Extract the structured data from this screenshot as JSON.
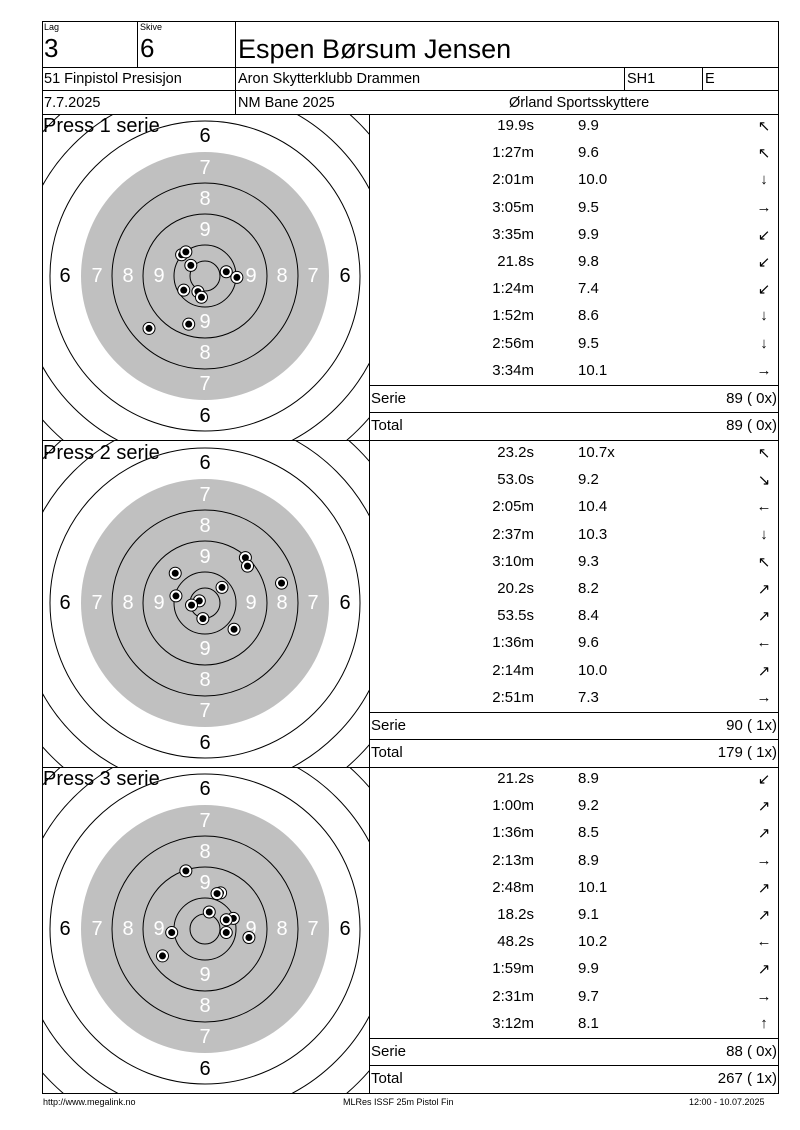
{
  "header": {
    "lag_label": "Lag",
    "lag": "3",
    "skive_label": "Skive",
    "skive": "6",
    "name": "Espen Børsum Jensen",
    "event": "51 Finpistol Presisjon",
    "club": "Aron Skytterklubb Drammen",
    "class": "SH1",
    "group": "E",
    "date": "7.7.2025",
    "venue": "NM Bane 2025",
    "organizer": "Ørland Sportsskyttere"
  },
  "series": [
    {
      "title": "Press 1 serie",
      "shots": [
        {
          "time": "19.9s",
          "score": "9.9",
          "arrow": "↖",
          "dx": -0.2,
          "dy": 0.15
        },
        {
          "time": "1:27m",
          "score": "9.6",
          "arrow": "↖",
          "dx": -0.33,
          "dy": 0.3
        },
        {
          "time": "2:01m",
          "score": "10.0",
          "arrow": "↓",
          "dx": 0.3,
          "dy": 0.06
        },
        {
          "time": "3:05m",
          "score": "9.5",
          "arrow": "→",
          "dx": 0.45,
          "dy": -0.02
        },
        {
          "time": "3:35m",
          "score": "9.9",
          "arrow": "↙",
          "dx": -0.1,
          "dy": -0.22
        },
        {
          "time": "21.8s",
          "score": "9.8",
          "arrow": "↙",
          "dx": -0.05,
          "dy": -0.3
        },
        {
          "time": "1:24m",
          "score": "7.4",
          "arrow": "↙",
          "dx": -0.79,
          "dy": -0.74
        },
        {
          "time": "1:52m",
          "score": "8.6",
          "arrow": "↓",
          "dx": -0.23,
          "dy": -0.68
        },
        {
          "time": "2:56m",
          "score": "9.5",
          "arrow": "↓",
          "dx": -0.3,
          "dy": -0.2
        },
        {
          "time": "3:34m",
          "score": "10.1",
          "arrow": "→",
          "dx": -0.27,
          "dy": 0.34
        }
      ],
      "serie_label": "Serie",
      "serie_total": "89 ( 0x)",
      "total_label": "Total",
      "total": "89 ( 0x)"
    },
    {
      "title": "Press 2 serie",
      "shots": [
        {
          "time": "23.2s",
          "score": "10.7x",
          "arrow": "↖",
          "dx": -0.08,
          "dy": 0.03
        },
        {
          "time": "53.0s",
          "score": "9.2",
          "arrow": "↘",
          "dx": 0.57,
          "dy": 0.64
        },
        {
          "time": "2:05m",
          "score": "10.4",
          "arrow": "←",
          "dx": 0.24,
          "dy": 0.22
        },
        {
          "time": "2:37m",
          "score": "10.3",
          "arrow": "↓",
          "dx": -0.19,
          "dy": -0.03
        },
        {
          "time": "3:10m",
          "score": "9.3",
          "arrow": "↖",
          "dx": -0.42,
          "dy": 0.42
        },
        {
          "time": "20.2s",
          "score": "8.2",
          "arrow": "↗",
          "dx": -0.41,
          "dy": 0.1
        },
        {
          "time": "53.5s",
          "score": "8.4",
          "arrow": "↗",
          "dx": 1.08,
          "dy": 0.28
        },
        {
          "time": "1:36m",
          "score": "9.6",
          "arrow": "←",
          "dx": 0.6,
          "dy": 0.52
        },
        {
          "time": "2:14m",
          "score": "10.0",
          "arrow": "↗",
          "dx": -0.03,
          "dy": -0.22
        },
        {
          "time": "2:51m",
          "score": "7.3",
          "arrow": "→",
          "dx": 0.41,
          "dy": -0.37
        }
      ],
      "serie_label": "Serie",
      "serie_total": "90 ( 1x)",
      "total_label": "Total",
      "total": "179 ( 1x)"
    },
    {
      "title": "Press 3 serie",
      "shots": [
        {
          "time": "21.2s",
          "score": "8.9",
          "arrow": "↙",
          "dx": -0.47,
          "dy": -0.05
        },
        {
          "time": "1:00m",
          "score": "9.2",
          "arrow": "↗",
          "dx": 0.4,
          "dy": 0.15
        },
        {
          "time": "1:36m",
          "score": "8.5",
          "arrow": "↗",
          "dx": 0.62,
          "dy": -0.12
        },
        {
          "time": "2:13m",
          "score": "8.9",
          "arrow": "→",
          "dx": 0.22,
          "dy": 0.51
        },
        {
          "time": "2:48m",
          "score": "10.1",
          "arrow": "↗",
          "dx": 0.17,
          "dy": 0.5
        },
        {
          "time": "18.2s",
          "score": "9.1",
          "arrow": "↗",
          "dx": 0.3,
          "dy": 0.13
        },
        {
          "time": "48.2s",
          "score": "10.2",
          "arrow": "←",
          "dx": 0.06,
          "dy": 0.24
        },
        {
          "time": "1:59m",
          "score": "9.9",
          "arrow": "↗",
          "dx": -0.27,
          "dy": 0.82
        },
        {
          "time": "2:31m",
          "score": "9.7",
          "arrow": "→",
          "dx": -0.6,
          "dy": -0.38
        },
        {
          "time": "3:12m",
          "score": "8.1",
          "arrow": "↑",
          "dx": 0.3,
          "dy": -0.05
        }
      ],
      "serie_label": "Serie",
      "serie_total": "88 ( 0x)",
      "total_label": "Total",
      "total": "267 ( 1x)"
    }
  ],
  "target": {
    "ring_labels_outer": "6",
    "ring_labels": [
      "7",
      "8",
      "9"
    ],
    "black_color": "#c0c0c0",
    "line_color": "#000000"
  },
  "footer": {
    "left": "http://www.megalink.no",
    "center": "MLRes ISSF 25m Pistol Fin",
    "right": "12:00 - 10.07.2025"
  }
}
